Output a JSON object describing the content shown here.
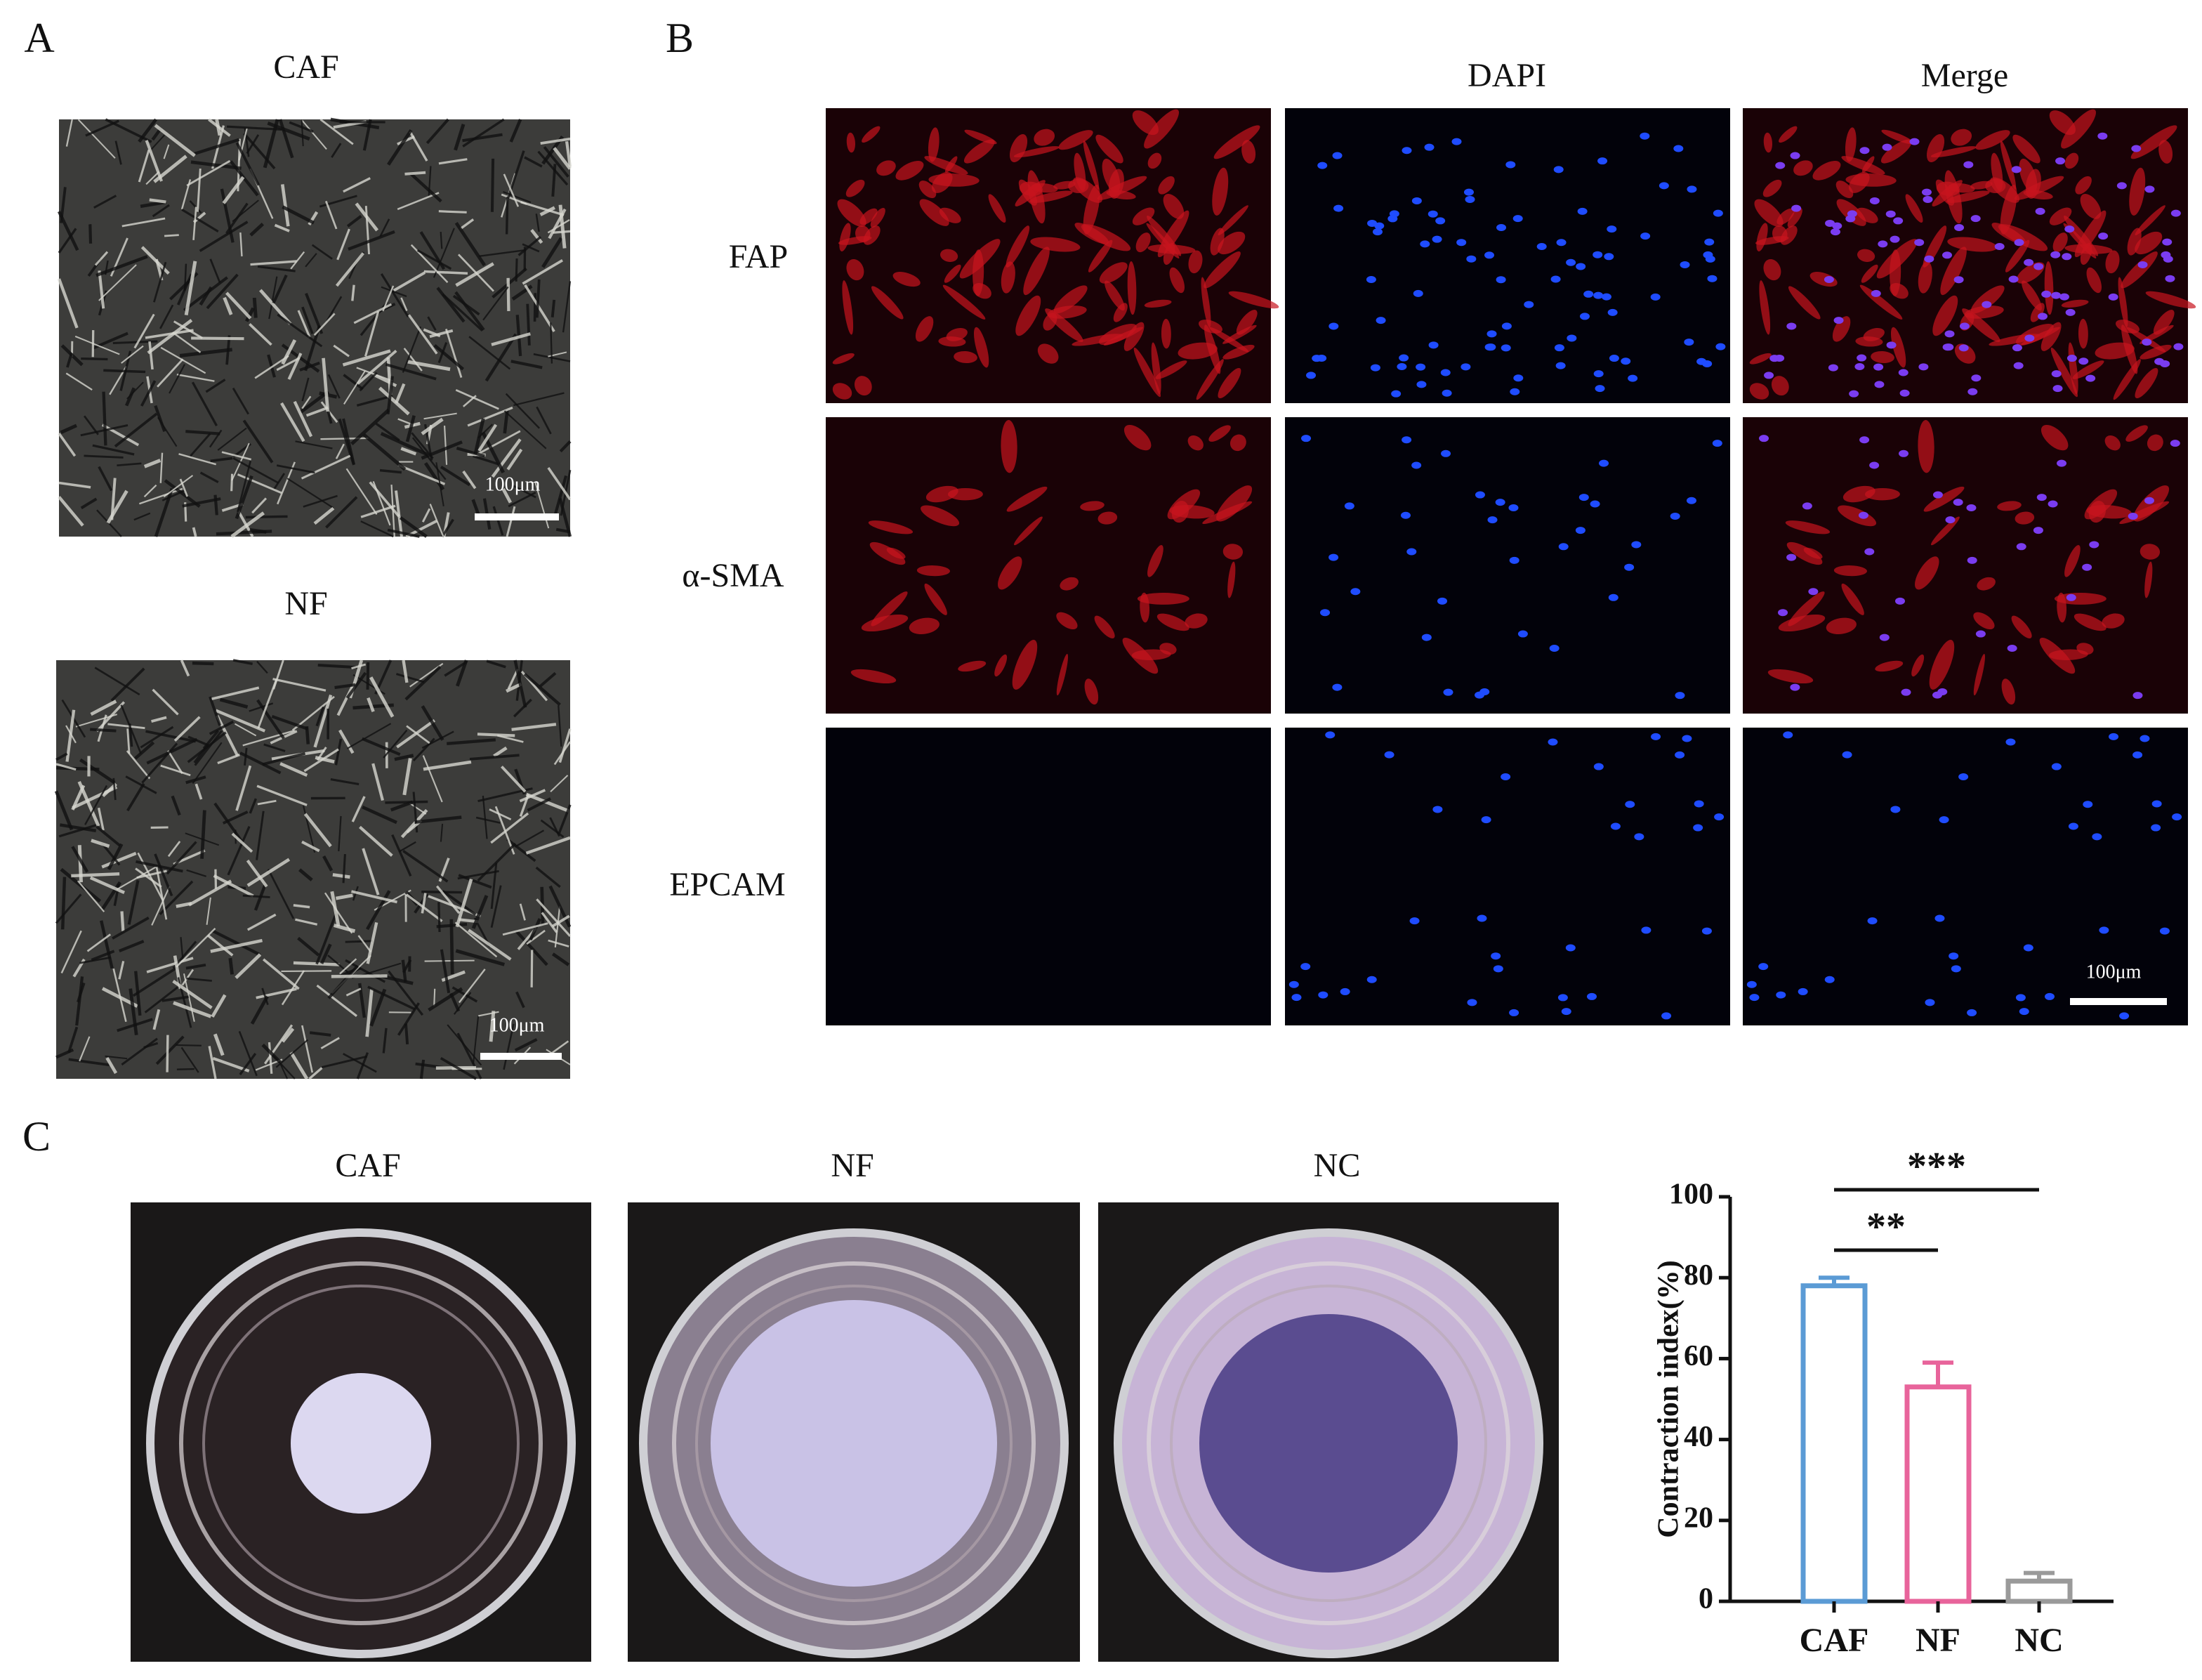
{
  "panel_a": {
    "label": "A",
    "images": [
      {
        "title": "CAF",
        "scale_bar": "100μm"
      },
      {
        "title": "NF",
        "scale_bar": "100μm"
      }
    ]
  },
  "panel_b": {
    "label": "B",
    "column_headers": [
      "DAPI",
      "Merge"
    ],
    "rows": [
      "FAP",
      "α-SMA",
      "EPCAM"
    ],
    "scale_bar": "100μm"
  },
  "panel_c": {
    "label": "C",
    "images": [
      {
        "title": "CAF"
      },
      {
        "title": "NF"
      },
      {
        "title": "NC"
      }
    ]
  },
  "chart_data": {
    "type": "bar",
    "y_label": "Contraction index(%)",
    "categories": [
      "CAF",
      "NF",
      "NC"
    ],
    "values": [
      78,
      53,
      5
    ],
    "errors": [
      2,
      6,
      2
    ],
    "colors": [
      "#5b9bd5",
      "#e8649b",
      "#9a9a9a"
    ],
    "ylim": [
      0,
      100
    ],
    "yticks": [
      0,
      20,
      40,
      60,
      80,
      100
    ],
    "annotations": [
      {
        "text": "**",
        "from": 0,
        "to": 1
      },
      {
        "text": "***",
        "from": 0,
        "to": 2
      }
    ]
  }
}
